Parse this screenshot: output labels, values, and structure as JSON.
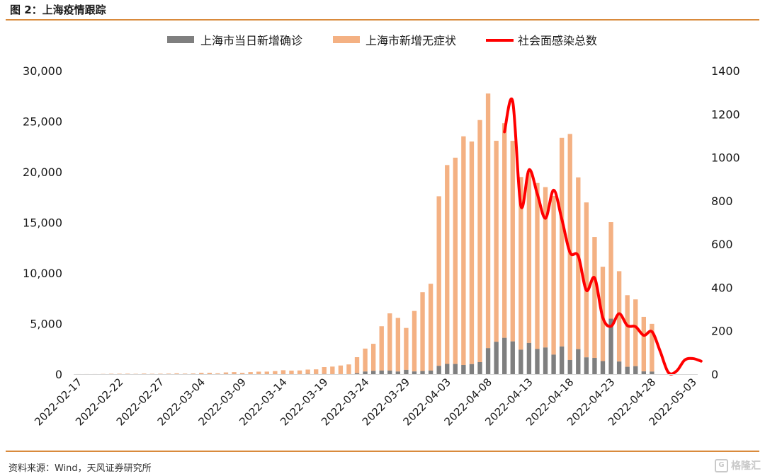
{
  "figure": {
    "title": "图 2：上海疫情跟踪",
    "source": "资料来源：Wind，天风证券研究所",
    "watermark": "格隆汇"
  },
  "chart_data": {
    "type": "bar",
    "x_start": "2022-02-17",
    "x_end": "2022-05-04",
    "x_tick_labels": [
      "2022-02-17",
      "2022-02-22",
      "2022-02-27",
      "2022-03-04",
      "2022-03-09",
      "2022-03-14",
      "2022-03-19",
      "2022-03-24",
      "2022-03-29",
      "2022-04-03",
      "2022-04-08",
      "2022-04-13",
      "2022-04-18",
      "2022-04-23",
      "2022-04-28",
      "2022-05-03"
    ],
    "y_left": {
      "ticks": [
        "0",
        "5,000",
        "10,000",
        "15,000",
        "20,000",
        "25,000",
        "30,000"
      ],
      "range": [
        0,
        30000
      ]
    },
    "y_right": {
      "ticks": [
        "0",
        "200",
        "400",
        "600",
        "800",
        "1000",
        "1200",
        "1400"
      ],
      "range": [
        0,
        1400
      ]
    },
    "stacked": true,
    "legend_position": "top",
    "grid": false,
    "series": [
      {
        "name": "上海市当日新增确诊",
        "kind": "bar",
        "axis": "left",
        "color": "#7f7f7f",
        "values": [
          1,
          0,
          1,
          0,
          1,
          0,
          1,
          2,
          3,
          1,
          2,
          3,
          3,
          5,
          3,
          4,
          4,
          4,
          11,
          9,
          4,
          1,
          5,
          5,
          3,
          4,
          3,
          3,
          24,
          8,
          17,
          4,
          4,
          2,
          96,
          260,
          326,
          358,
          355,
          260,
          425,
          268,
          311,
          358,
          824,
          1015,
          1006,
          908,
          994,
          1189,
          2573,
          3200,
          3590,
          3238,
          2417,
          3084,
          2494,
          2634,
          1931,
          2736,
          1401,
          2472,
          1661,
          1606,
          1292,
          5487,
          1249,
          727,
          788,
          274,
          253
        ]
      },
      {
        "name": "上海市新增无症状",
        "kind": "bar",
        "axis": "left",
        "color": "#f4b183",
        "values": [
          2,
          5,
          5,
          20,
          38,
          42,
          45,
          28,
          54,
          35,
          43,
          52,
          76,
          48,
          64,
          128,
          130,
          80,
          158,
          192,
          125,
          201,
          241,
          246,
          299,
          387,
          347,
          361,
          431,
          468,
          682,
          745,
          852,
          960,
          1582,
          2269,
          2676,
          4381,
          5656,
          5298,
          4144,
          5982,
          7788,
          8581,
          16766,
          19660,
          20398,
          22609,
          22005,
          23937,
          25173,
          19872,
          21222,
          19831,
          17077,
          16983,
          16407,
          15861,
          15698,
          20634,
          22348,
          16983,
          15319,
          11956,
          9330,
          9545,
          8932,
          7084,
          6606,
          5395,
          4722
        ]
      },
      {
        "name": "社会面感染总数",
        "kind": "line",
        "axis": "right",
        "color": "#ff0000",
        "x_start": "2022-04-10",
        "values": [
          1118,
          1259,
          776,
          943,
          833,
          719,
          849,
          715,
          561,
          546,
          387,
          444,
          261,
          221,
          279,
          224,
          219,
          179,
          196,
          106,
          8,
          14,
          65,
          72,
          60
        ]
      }
    ]
  }
}
